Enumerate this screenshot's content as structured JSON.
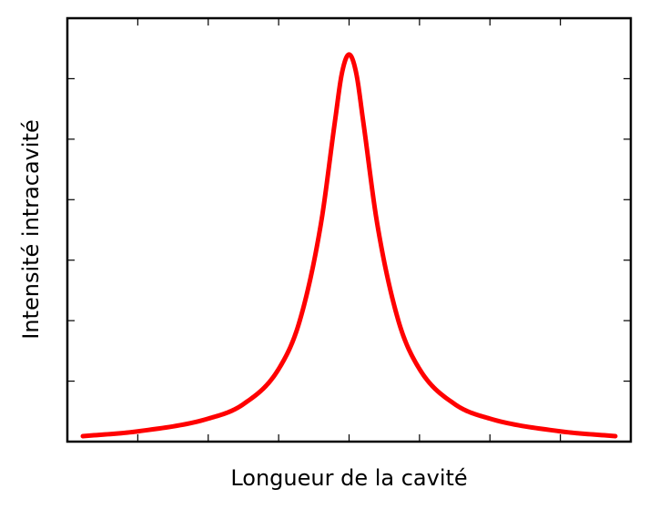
{
  "chart_data": {
    "type": "line",
    "xlabel": "Longueur de la cavité",
    "ylabel": "Intensité intracavité",
    "xlim": [
      0,
      8
    ],
    "ylim": [
      0,
      7
    ],
    "x_tick_count": 7,
    "y_tick_count": 6,
    "tick_labels_shown": false,
    "grid": false,
    "legend": "none",
    "series": [
      {
        "color": "#ff0000",
        "x": [
          0.22,
          1.0,
          2.0,
          2.5,
          3.0,
          3.3,
          3.6,
          3.8,
          3.9,
          4.0,
          4.1,
          4.2,
          4.4,
          4.7,
          5.0,
          5.5,
          6.0,
          7.0,
          7.78
        ],
        "y": [
          0.09,
          0.17,
          0.38,
          0.62,
          1.2,
          2.0,
          3.6,
          5.3,
          6.1,
          6.4,
          6.1,
          5.3,
          3.6,
          2.0,
          1.2,
          0.62,
          0.38,
          0.17,
          0.09
        ]
      }
    ]
  }
}
